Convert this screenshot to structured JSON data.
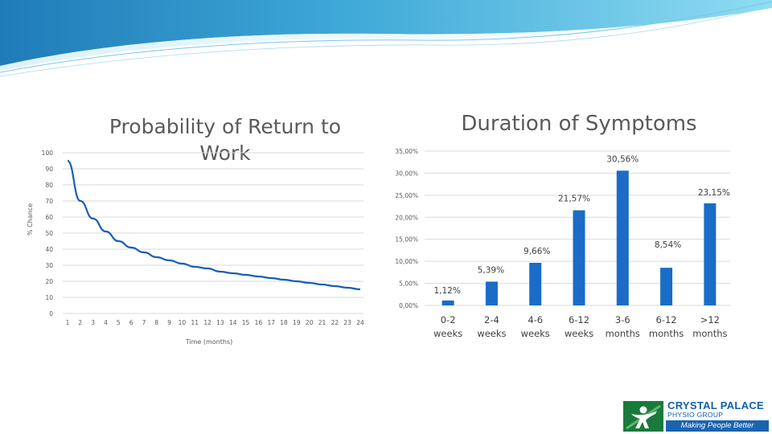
{
  "slide": {
    "logo": {
      "line1": "CRYSTAL PALACE",
      "line2": "PHYSIO GROUP",
      "tagline": "Making People Better"
    }
  },
  "chart_data": [
    {
      "type": "line",
      "title": "Probability of Return to Work",
      "xlabel": "Time (months)",
      "ylabel": "% Chance",
      "x": [
        1,
        2,
        3,
        4,
        5,
        6,
        7,
        8,
        9,
        10,
        11,
        12,
        13,
        14,
        15,
        16,
        17,
        18,
        19,
        20,
        21,
        22,
        23,
        24
      ],
      "y": [
        95,
        70,
        59,
        51,
        45,
        41,
        38,
        35,
        33,
        31,
        29,
        28,
        26,
        25,
        24,
        23,
        22,
        21,
        20,
        19,
        18,
        17,
        16,
        15
      ],
      "ylim": [
        0,
        100
      ],
      "yticks": [
        0,
        10,
        20,
        30,
        40,
        50,
        60,
        70,
        80,
        90,
        100
      ],
      "xticks": [
        "1",
        "2",
        "3",
        "4",
        "5",
        "6",
        "7",
        "8",
        "9",
        "10",
        "11",
        "12",
        "13",
        "14",
        "15",
        "16",
        "17",
        "18",
        "19",
        "20",
        "21",
        "22",
        "23",
        "24"
      ],
      "grid": true,
      "color": "#1a5fb4"
    },
    {
      "type": "bar",
      "title": "Duration of Symptoms",
      "categories": [
        [
          "0-2",
          "weeks"
        ],
        [
          "2-4",
          "weeks"
        ],
        [
          "4-6",
          "weeks"
        ],
        [
          "6-12",
          "weeks"
        ],
        [
          "3-6",
          "months"
        ],
        [
          "6-12",
          "months"
        ],
        [
          ">12",
          "months"
        ]
      ],
      "values": [
        1.12,
        5.39,
        9.66,
        21.57,
        30.56,
        8.54,
        23.15
      ],
      "data_labels": [
        "1,12%",
        "5,39%",
        "9,66%",
        "21,57%",
        "30,56%",
        "8,54%",
        "23,15%"
      ],
      "ylim": [
        0,
        35
      ],
      "yticks": [
        0,
        5,
        10,
        15,
        20,
        25,
        30,
        35
      ],
      "ytick_labels": [
        "0,00%",
        "5,00%",
        "10,00%",
        "15,00%",
        "20,00%",
        "25,00%",
        "30,00%",
        "35,00%"
      ],
      "grid": true,
      "color": "#1a6cc7"
    }
  ]
}
